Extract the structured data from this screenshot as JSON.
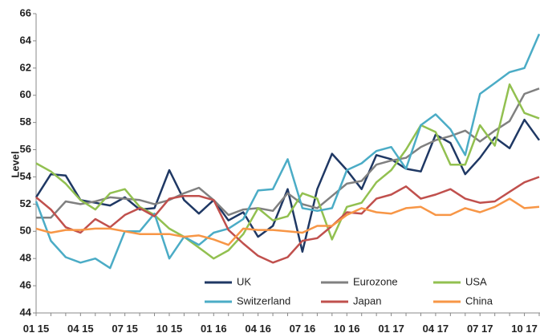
{
  "chart_data": {
    "type": "line",
    "y_label": "Level",
    "categories": [
      "01 15",
      null,
      null,
      "04 15",
      null,
      null,
      "07 15",
      null,
      null,
      "10 15",
      null,
      null,
      "01 16",
      null,
      null,
      "04 16",
      null,
      null,
      "07 16",
      null,
      null,
      "10 16",
      null,
      null,
      "01 17",
      null,
      null,
      "04 17",
      null,
      null,
      "07 17",
      null,
      null,
      "10 17",
      null
    ],
    "series": [
      {
        "name": "UK",
        "color": "#1f3864",
        "values": [
          52.5,
          54.2,
          54.1,
          52.3,
          52.1,
          51.9,
          52.5,
          51.6,
          51.7,
          54.5,
          52.3,
          51.3,
          52.3,
          50.8,
          51.4,
          49.6,
          50.4,
          53.1,
          48.5,
          53.1,
          55.7,
          54.5,
          53.1,
          55.6,
          55.3,
          54.6,
          54.4,
          57.1,
          56.5,
          54.2,
          55.4,
          56.9,
          56.1,
          58.2,
          56.7
        ]
      },
      {
        "name": "Eurozone",
        "color": "#808080",
        "values": [
          51.0,
          51.0,
          52.2,
          52.0,
          52.2,
          52.5,
          52.4,
          52.3,
          52.0,
          52.3,
          52.8,
          53.2,
          52.3,
          51.2,
          51.6,
          51.7,
          51.5,
          52.8,
          52.0,
          51.7,
          52.6,
          53.5,
          53.7,
          54.9,
          55.2,
          55.4,
          56.2,
          56.7,
          57.0,
          57.4,
          56.6,
          57.4,
          58.1,
          60.1,
          60.5
        ]
      },
      {
        "name": "USA",
        "color": "#92c050",
        "values": [
          55.0,
          54.4,
          53.5,
          52.3,
          51.6,
          52.8,
          53.1,
          51.8,
          51.2,
          50.2,
          49.6,
          48.8,
          48.0,
          48.6,
          49.8,
          51.7,
          50.8,
          51.1,
          52.8,
          52.4,
          49.4,
          51.8,
          52.1,
          53.6,
          54.5,
          56.0,
          57.8,
          57.3,
          54.9,
          54.9,
          57.8,
          56.3,
          60.8,
          58.7,
          58.3
        ]
      },
      {
        "name": "Switzerland",
        "color": "#4bacc6",
        "values": [
          52.2,
          49.3,
          48.1,
          47.7,
          48.0,
          47.3,
          50.0,
          50.0,
          51.3,
          48.0,
          49.6,
          49.0,
          49.9,
          50.2,
          50.9,
          53.0,
          53.1,
          55.3,
          51.7,
          51.5,
          51.7,
          54.5,
          55.0,
          55.9,
          56.2,
          54.6,
          57.8,
          58.6,
          57.5,
          55.6,
          60.1,
          60.9,
          61.7,
          62.0,
          64.5
        ]
      },
      {
        "name": "Japan",
        "color": "#c0504d",
        "values": [
          52.5,
          51.6,
          50.3,
          49.9,
          50.9,
          50.3,
          51.2,
          51.7,
          51.1,
          52.4,
          52.6,
          52.6,
          52.3,
          50.1,
          49.1,
          48.2,
          47.7,
          48.1,
          49.3,
          49.5,
          50.4,
          51.4,
          51.3,
          52.4,
          52.7,
          53.3,
          52.4,
          52.7,
          53.1,
          52.4,
          52.1,
          52.2,
          52.9,
          53.6,
          54.0
        ]
      },
      {
        "name": "China",
        "color": "#f79646",
        "values": [
          50.2,
          49.9,
          50.1,
          50.1,
          50.2,
          50.2,
          50.0,
          49.8,
          49.8,
          49.8,
          49.6,
          49.7,
          49.4,
          49.0,
          50.2,
          50.1,
          50.1,
          50.0,
          49.9,
          50.4,
          50.4,
          51.2,
          51.7,
          51.4,
          51.3,
          51.7,
          51.8,
          51.2,
          51.2,
          51.7,
          51.4,
          51.8,
          52.4,
          51.7,
          51.8
        ]
      }
    ],
    "ylim": [
      44,
      66
    ],
    "yticks": [
      44,
      46,
      48,
      50,
      52,
      54,
      56,
      58,
      60,
      62,
      64,
      66
    ],
    "grid": false
  }
}
